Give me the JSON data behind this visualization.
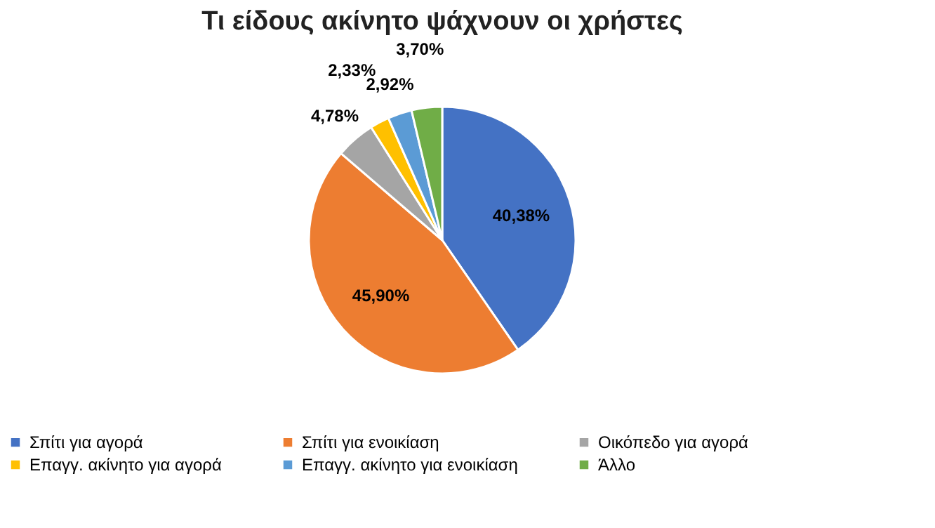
{
  "chart_data": {
    "type": "pie",
    "title": "Τι είδους ακίνητο ψάχνουν οι χρήστες",
    "categories": [
      "Σπίτι για αγορά",
      "Σπίτι για ενοικίαση",
      "Οικόπεδο για αγορά",
      "Επαγγ. ακίνητο για αγορά",
      "Επαγγ. ακίνητο για ενοικίαση",
      "Άλλο"
    ],
    "values": [
      40.38,
      45.9,
      4.78,
      2.33,
      2.92,
      3.7
    ],
    "colors": [
      "#4472c4",
      "#ed7d31",
      "#a5a5a5",
      "#ffc000",
      "#5b9bd5",
      "#70ad47"
    ],
    "value_labels": [
      "40,38%",
      "45,90%",
      "4,78%",
      "2,33%",
      "2,92%",
      "3,70%"
    ],
    "legend": "bottom"
  }
}
